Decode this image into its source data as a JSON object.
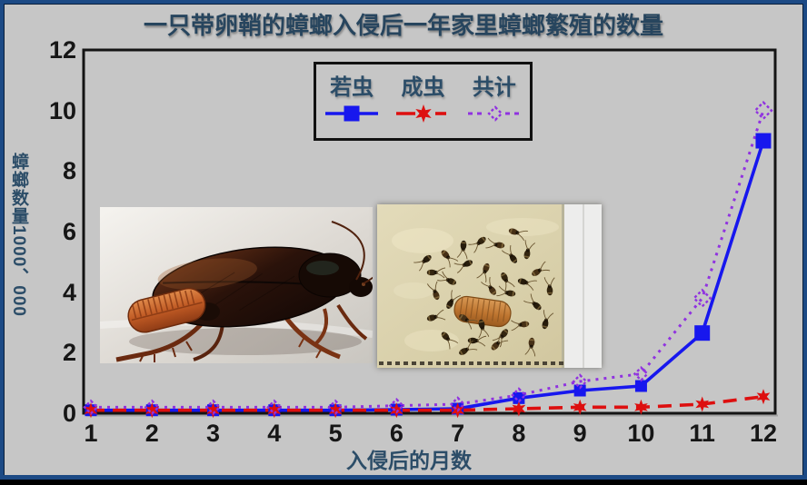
{
  "frame": {
    "background": "#c6c6c6",
    "border_color": "#1c4a85",
    "edge_color": "#000000"
  },
  "title": {
    "text": "一只带卵鞘的蟑螂入侵后一年家里蟑螂繁殖的数量",
    "color": "#27455e"
  },
  "legend": {
    "items": [
      {
        "label": "若虫"
      },
      {
        "label": "成虫"
      },
      {
        "label": "共计"
      }
    ]
  },
  "axes": {
    "ylabel": "蟑螂数量1000、000",
    "xlabel": "入侵后的月数",
    "yticks": [
      0,
      2,
      4,
      6,
      8,
      10,
      12
    ],
    "xticks": [
      1,
      2,
      3,
      4,
      5,
      6,
      7,
      8,
      9,
      10,
      11,
      12
    ]
  },
  "photos": [
    {
      "name": "cockroach-with-ootheca-photo"
    },
    {
      "name": "nymphs-on-sticky-trap-photo"
    }
  ],
  "chart_data": {
    "type": "line",
    "title": "一只带卵鞘的蟑螂入侵后一年家里蟑螂繁殖的数量",
    "xlabel": "入侵后的月数",
    "ylabel": "蟑螂数量1000、000",
    "x": [
      1,
      2,
      3,
      4,
      5,
      6,
      7,
      8,
      9,
      10,
      11,
      12
    ],
    "series": [
      {
        "name": "若虫",
        "color": "#1717ee",
        "line_style": "solid",
        "marker": "filled-square",
        "values": [
          0.1,
          0.1,
          0.1,
          0.1,
          0.1,
          0.12,
          0.15,
          0.5,
          0.75,
          0.9,
          2.65,
          9.0
        ]
      },
      {
        "name": "成虫",
        "color": "#dd0f0f",
        "line_style": "dashed",
        "marker": "filled-star",
        "values": [
          0.1,
          0.1,
          0.1,
          0.1,
          0.1,
          0.1,
          0.1,
          0.15,
          0.2,
          0.2,
          0.3,
          0.55
        ]
      },
      {
        "name": "共计",
        "color": "#9032e0",
        "line_style": "dotted",
        "marker": "open-diamond",
        "values": [
          0.2,
          0.2,
          0.2,
          0.2,
          0.2,
          0.25,
          0.3,
          0.6,
          1.05,
          1.3,
          3.8,
          10.0
        ]
      }
    ],
    "ylim": [
      0,
      12
    ],
    "xlim": [
      1,
      12
    ],
    "grid": false,
    "legend_position": "top-center-inside"
  }
}
